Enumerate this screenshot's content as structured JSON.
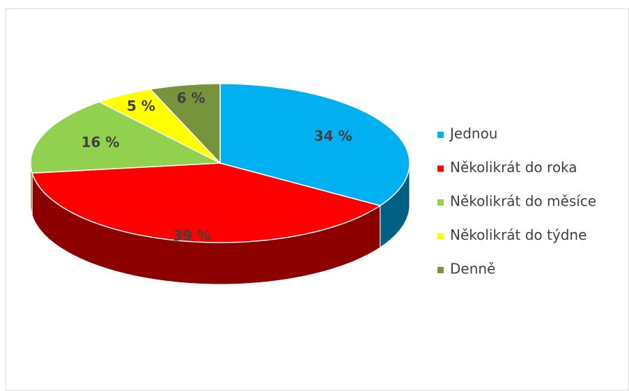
{
  "chart_data": {
    "type": "pie3d",
    "categories": [
      "Jednou",
      "Několikrát do roka",
      "Několikrát do měsíce",
      "Několikrát do týdne",
      "Denně"
    ],
    "values": [
      34,
      39,
      16,
      5,
      6
    ],
    "value_labels": [
      "34 %",
      "39 %",
      "16 %",
      "5 %",
      "6 %"
    ],
    "colors": [
      "#00b0f0",
      "#ff0000",
      "#92d050",
      "#ffff00",
      "#77933c"
    ],
    "legend": "right"
  }
}
